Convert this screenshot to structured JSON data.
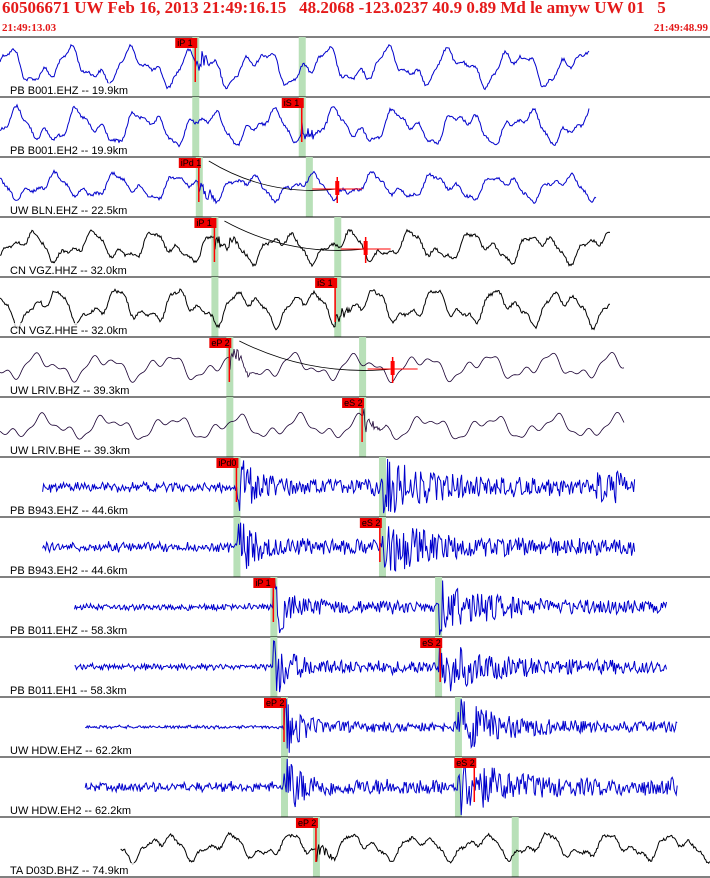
{
  "header": {
    "title": "60506671 UW Feb 16, 2013 21:49:16.15   48.2068 -123.0237 40.9 0.89 Md le amyw UW 01   5",
    "time_start": "21:49:13.03",
    "time_end": "21:49:48.99"
  },
  "colors": {
    "header_text": "#e41a1a",
    "trace_blue": "#0000cc",
    "trace_black": "#000000",
    "trace_dark_purple": "#1a0033",
    "pick_box": "#ee0000",
    "pick_marker": "#ff0000",
    "arrival_band": "#b8e0b8",
    "divider": "#000000"
  },
  "chart_data": {
    "type": "line",
    "title": "60506671 UW Feb 16, 2013 21:49:16.15   48.2068 -123.0237 40.9 0.89 Md le amyw UW 01   5",
    "x_start": "21:49:13.03",
    "x_end": "21:49:48.99",
    "xlabel": "",
    "ylabel": "",
    "grid": false,
    "legend": "none",
    "series": [
      {
        "name": "PB B001.EHZ -- 19.9km",
        "color": "blue",
        "style": "smooth",
        "amp": 0.85,
        "freq": "low",
        "start": 0.0,
        "end": 0.83,
        "pick": {
          "label": "iP 1",
          "t": 0.275
        },
        "bands": [
          0.275,
          0.425
        ]
      },
      {
        "name": "PB B001.EH2 -- 19.9km",
        "color": "blue",
        "style": "smooth",
        "amp": 0.8,
        "freq": "low",
        "start": 0.0,
        "end": 0.83,
        "pick": {
          "label": "iS 1",
          "t": 0.425
        },
        "bands": [
          0.275,
          0.425
        ]
      },
      {
        "name": "UW BLN.EHZ -- 22.5km",
        "color": "blue",
        "style": "smooth",
        "amp": 0.6,
        "freq": "low",
        "start": 0.0,
        "end": 0.84,
        "pick": {
          "label": "iPd 1",
          "t": 0.28
        },
        "bands": [
          0.28,
          0.435
        ],
        "coda": {
          "t": 0.475
        }
      },
      {
        "name": "CN VGZ.HHZ -- 32.0km",
        "color": "black",
        "style": "smooth",
        "amp": 0.7,
        "freq": "low",
        "start": 0.0,
        "end": 0.86,
        "pick": {
          "label": "iP 1",
          "t": 0.302
        },
        "bands": [
          0.302,
          0.475
        ],
        "coda": {
          "t": 0.515
        }
      },
      {
        "name": "CN VGZ.HHE -- 32.0km",
        "color": "black",
        "style": "smooth",
        "amp": 0.8,
        "freq": "low",
        "start": 0.0,
        "end": 0.86,
        "pick": {
          "label": "iS 1",
          "t": 0.472
        },
        "bands": [
          0.302,
          0.475
        ]
      },
      {
        "name": "UW LRIV.BHZ -- 39.3km",
        "color": "purple",
        "style": "smooth",
        "amp": 0.6,
        "freq": "low",
        "start": 0.0,
        "end": 0.88,
        "pick": {
          "label": "eP 2",
          "t": 0.323
        },
        "bands": [
          0.323,
          0.51
        ],
        "coda": {
          "t": 0.553
        }
      },
      {
        "name": "UW LRIV.BHE -- 39.3km",
        "color": "purple",
        "style": "smooth",
        "amp": 0.55,
        "freq": "low",
        "start": 0.0,
        "end": 0.88,
        "pick": {
          "label": "eS 2",
          "t": 0.51
        },
        "bands": [
          0.323,
          0.51
        ]
      },
      {
        "name": "PB B943.EHZ -- 44.6km",
        "color": "blue",
        "style": "noise",
        "amp": 0.15,
        "freq": "high",
        "start": 0.06,
        "end": 0.895,
        "pick": {
          "label": "iPd0",
          "t": 0.333
        },
        "bands": [
          0.333,
          0.538
        ],
        "burst": [
          0.84,
          0.88
        ]
      },
      {
        "name": "PB B943.EH2 -- 44.6km",
        "color": "blue",
        "style": "noise",
        "amp": 0.15,
        "freq": "high",
        "start": 0.06,
        "end": 0.895,
        "pick": {
          "label": "eS 2",
          "t": 0.535
        },
        "bands": [
          0.333,
          0.538
        ]
      },
      {
        "name": "PB B011.EHZ -- 58.3km",
        "color": "blue",
        "style": "noise",
        "amp": 0.1,
        "freq": "high",
        "start": 0.105,
        "end": 0.94,
        "pick": {
          "label": "iP 1",
          "t": 0.385
        },
        "bands": [
          0.385,
          0.617
        ]
      },
      {
        "name": "PB B011.EH1 -- 58.3km",
        "color": "blue",
        "style": "noise",
        "amp": 0.1,
        "freq": "high",
        "start": 0.105,
        "end": 0.94,
        "pick": {
          "label": "eS 2",
          "t": 0.62
        },
        "bands": [
          0.385,
          0.617
        ]
      },
      {
        "name": "UW HDW.EHZ -- 62.2km",
        "color": "blue",
        "style": "noise",
        "amp": 0.05,
        "freq": "high",
        "start": 0.12,
        "end": 0.955,
        "pick": {
          "label": "eP 2",
          "t": 0.4
        },
        "bands": [
          0.4,
          0.645
        ]
      },
      {
        "name": "UW HDW.EH2 -- 62.2km",
        "color": "blue",
        "style": "noise",
        "amp": 0.15,
        "freq": "high",
        "start": 0.12,
        "end": 0.955,
        "pick": {
          "label": "eS 2",
          "t": 0.668
        },
        "bands": [
          0.4,
          0.645
        ]
      },
      {
        "name": "TA D03D.BHZ -- 74.9km",
        "color": "black",
        "style": "smooth",
        "amp": 0.6,
        "freq": "low",
        "start": 0.17,
        "end": 1.0,
        "pick": {
          "label": "eP 2",
          "t": 0.445
        },
        "bands": [
          0.445,
          0.725
        ]
      }
    ]
  }
}
